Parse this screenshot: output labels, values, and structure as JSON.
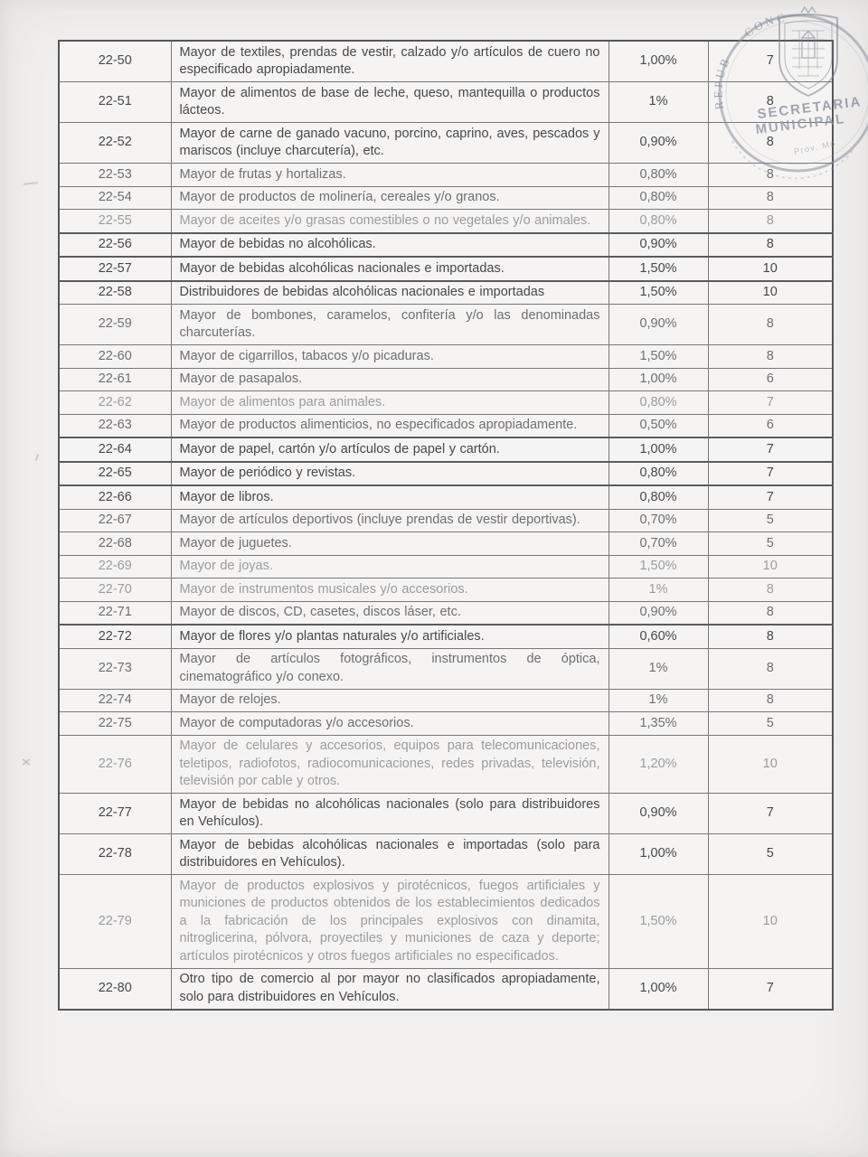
{
  "table": {
    "columns": [
      "code",
      "description",
      "rate",
      "quota"
    ],
    "rows": [
      {
        "code": "22-50",
        "description": "Mayor de textiles, prendas de vestir, calzado y/o artículos de cuero no especificado apropiadamente.",
        "rate": "1,00%",
        "quota": "7",
        "tone": "normal"
      },
      {
        "code": "22-51",
        "description": "Mayor de alimentos de base de leche, queso, mantequilla o productos lácteos.",
        "rate": "1%",
        "quota": "8",
        "tone": "normal"
      },
      {
        "code": "22-52",
        "description": "Mayor de carne de ganado vacuno, porcino, caprino, aves, pescados y mariscos (incluye charcutería), etc.",
        "rate": "0,90%",
        "quota": "8",
        "tone": "normal"
      },
      {
        "code": "22-53",
        "description": "Mayor de frutas y hortalizas.",
        "rate": "0,80%",
        "quota": "8",
        "tone": "medium"
      },
      {
        "code": "22-54",
        "description": "Mayor de productos de molinería, cereales y/o granos.",
        "rate": "0,80%",
        "quota": "8",
        "tone": "medium"
      },
      {
        "code": "22-55",
        "description": "Mayor de aceites y/o grasas comestibles o no vegetales y/o animales.",
        "rate": "0,80%",
        "quota": "8",
        "tone": "light"
      },
      {
        "code": "22-56",
        "description": "Mayor de bebidas no alcohólicas.",
        "rate": "0,90%",
        "quota": "8",
        "tone": "normal"
      },
      {
        "code": "22-57",
        "description": "Mayor de bebidas alcohólicas nacionales e importadas.",
        "rate": "1,50%",
        "quota": "10",
        "tone": "normal"
      },
      {
        "code": "22-58",
        "description": "Distribuidores de bebidas alcohólicas nacionales e importadas",
        "rate": "1,50%",
        "quota": "10",
        "tone": "normal"
      },
      {
        "code": "22-59",
        "description": "Mayor de bombones, caramelos, confitería y/o las denominadas charcuterías.",
        "rate": "0,90%",
        "quota": "8",
        "tone": "medium"
      },
      {
        "code": "22-60",
        "description": "Mayor de cigarrillos, tabacos y/o picaduras.",
        "rate": "1,50%",
        "quota": "8",
        "tone": "medium"
      },
      {
        "code": "22-61",
        "description": "Mayor de pasapalos.",
        "rate": "1,00%",
        "quota": "6",
        "tone": "medium"
      },
      {
        "code": "22-62",
        "description": "Mayor de alimentos para animales.",
        "rate": "0,80%",
        "quota": "7",
        "tone": "light"
      },
      {
        "code": "22-63",
        "description": "Mayor de productos alimenticios, no especificados apropiadamente.",
        "rate": "0,50%",
        "quota": "6",
        "tone": "medium"
      },
      {
        "code": "22-64",
        "description": "Mayor de papel, cartón y/o artículos de papel y cartón.",
        "rate": "1,00%",
        "quota": "7",
        "tone": "normal"
      },
      {
        "code": "22-65",
        "description": "Mayor de periódico y revistas.",
        "rate": "0,80%",
        "quota": "7",
        "tone": "normal"
      },
      {
        "code": "22-66",
        "description": "Mayor de libros.",
        "rate": "0,80%",
        "quota": "7",
        "tone": "normal"
      },
      {
        "code": "22-67",
        "description": "Mayor de artículos deportivos (incluye prendas de vestir deportivas).",
        "rate": "0,70%",
        "quota": "5",
        "tone": "medium"
      },
      {
        "code": "22-68",
        "description": "Mayor de juguetes.",
        "rate": "0,70%",
        "quota": "5",
        "tone": "medium"
      },
      {
        "code": "22-69",
        "description": "Mayor de joyas.",
        "rate": "1,50%",
        "quota": "10",
        "tone": "light"
      },
      {
        "code": "22-70",
        "description": "Mayor de instrumentos musicales y/o accesorios.",
        "rate": "1%",
        "quota": "8",
        "tone": "light"
      },
      {
        "code": "22-71",
        "description": "Mayor de discos, CD, casetes, discos láser, etc.",
        "rate": "0,90%",
        "quota": "8",
        "tone": "medium"
      },
      {
        "code": "22-72",
        "description": "Mayor de flores y/o plantas naturales y/o artificiales.",
        "rate": "0,60%",
        "quota": "8",
        "tone": "normal"
      },
      {
        "code": "22-73",
        "description": "Mayor de artículos fotográficos, instrumentos de óptica, cinematográfico y/o conexo.",
        "rate": "1%",
        "quota": "8",
        "tone": "medium"
      },
      {
        "code": "22-74",
        "description": "Mayor de relojes.",
        "rate": "1%",
        "quota": "8",
        "tone": "medium"
      },
      {
        "code": "22-75",
        "description": "Mayor de computadoras y/o accesorios.",
        "rate": "1,35%",
        "quota": "5",
        "tone": "medium"
      },
      {
        "code": "22-76",
        "description": "Mayor de celulares y accesorios, equipos para telecomunicaciones, teletipos, radiofotos, radiocomunicaciones, redes privadas, televisión, televisión por cable y otros.",
        "rate": "1,20%",
        "quota": "10",
        "tone": "light"
      },
      {
        "code": "22-77",
        "description": "Mayor de bebidas no alcohólicas nacionales (solo para distribuidores en Vehículos).",
        "rate": "0,90%",
        "quota": "7",
        "tone": "normal"
      },
      {
        "code": "22-78",
        "description": "Mayor de bebidas alcohólicas nacionales e importadas (solo para distribuidores en Vehículos).",
        "rate": "1,00%",
        "quota": "5",
        "tone": "normal"
      },
      {
        "code": "22-79",
        "description": "Mayor de productos explosivos y pirotécnicos, fuegos artificiales y municiones de productos obtenidos de los establecimientos dedicados a la fabricación de los principales explosivos con dinamita, nitroglicerina, pólvora, proyectiles y municiones de caza y deporte; artículos pirotécnicos y otros fuegos artificiales no especificados.",
        "rate": "1,50%",
        "quota": "10",
        "tone": "light"
      },
      {
        "code": "22-80",
        "description": "Otro tipo de comercio al por mayor no clasificados apropiadamente, solo para distribuidores en Vehículos.",
        "rate": "1,00%",
        "quota": "7",
        "tone": "normal"
      }
    ]
  },
  "stamp": {
    "line1": "SECRETARIA",
    "line2": "MUNICIPAL",
    "arc_left": "REPUB",
    "arc_top": "CONC",
    "small_text": "Prov. Mo",
    "ink_color": "#8a90a2"
  }
}
